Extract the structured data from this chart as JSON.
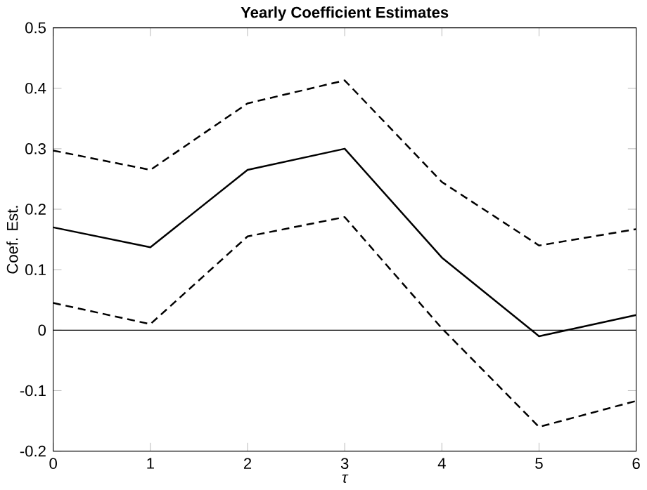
{
  "chart_data": {
    "type": "line",
    "title": "Yearly Coefficient Estimates",
    "xlabel": "τ",
    "ylabel": "Coef. Est.",
    "x": [
      0,
      1,
      2,
      3,
      4,
      5,
      6
    ],
    "series": [
      {
        "color": "#000000",
        "line_style": "dashed",
        "values": [
          0.297,
          0.265,
          0.375,
          0.413,
          0.245,
          0.14,
          0.167
        ]
      },
      {
        "color": "#000000",
        "line_style": "solid",
        "values": [
          0.17,
          0.137,
          0.265,
          0.3,
          0.12,
          -0.01,
          0.025
        ]
      },
      {
        "color": "#000000",
        "line_style": "dashed",
        "values": [
          0.045,
          0.01,
          0.155,
          0.187,
          0.003,
          -0.16,
          -0.117
        ]
      }
    ],
    "xlim": [
      0,
      6
    ],
    "xticks": [
      0,
      1,
      2,
      3,
      4,
      5,
      6
    ],
    "ylim": [
      -0.2,
      0.5
    ],
    "yticks": [
      -0.2,
      -0.1,
      0,
      0.1,
      0.2,
      0.3,
      0.4,
      0.5
    ],
    "ref_lines": [
      {
        "axis": "y",
        "value": 0,
        "color": "#000000"
      }
    ],
    "marker": "none"
  }
}
